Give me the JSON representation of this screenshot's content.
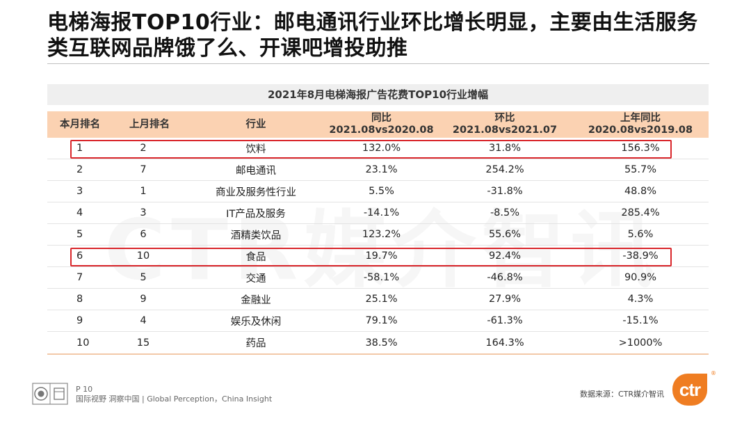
{
  "title": "电梯海报TOP10行业：邮电通讯行业环比增长明显，主要由生活服务类互联网品牌饿了么、开课吧增投助推",
  "table": {
    "caption": "2021年8月电梯海报广告花费TOP10行业增幅",
    "headers": {
      "rank_this": "本月排名",
      "rank_last": "上月排名",
      "industry": "行业",
      "yoy_label": "同比",
      "yoy_period": "2021.08vs2020.08",
      "mom_label": "环比",
      "mom_period": "2021.08vs2021.07",
      "prev_yoy_label": "上年同比",
      "prev_yoy_period": "2020.08vs2019.08"
    },
    "rows": [
      {
        "rank": "1",
        "last": "2",
        "industry": "饮料",
        "yoy": "132.0%",
        "mom": "31.8%",
        "prev": "156.3%"
      },
      {
        "rank": "2",
        "last": "7",
        "industry": "邮电通讯",
        "yoy": "23.1%",
        "mom": "254.2%",
        "prev": "55.7%"
      },
      {
        "rank": "3",
        "last": "1",
        "industry": "商业及服务性行业",
        "yoy": "5.5%",
        "mom": "-31.8%",
        "prev": "48.8%"
      },
      {
        "rank": "4",
        "last": "3",
        "industry": "IT产品及服务",
        "yoy": "-14.1%",
        "mom": "-8.5%",
        "prev": "285.4%"
      },
      {
        "rank": "5",
        "last": "6",
        "industry": "酒精类饮品",
        "yoy": "123.2%",
        "mom": "55.6%",
        "prev": "5.6%"
      },
      {
        "rank": "6",
        "last": "10",
        "industry": "食品",
        "yoy": "19.7%",
        "mom": "92.4%",
        "prev": "-38.9%"
      },
      {
        "rank": "7",
        "last": "5",
        "industry": "交通",
        "yoy": "-58.1%",
        "mom": "-46.8%",
        "prev": "90.9%"
      },
      {
        "rank": "8",
        "last": "9",
        "industry": "金融业",
        "yoy": "25.1%",
        "mom": "27.9%",
        "prev": "4.3%"
      },
      {
        "rank": "9",
        "last": "4",
        "industry": "娱乐及休闲",
        "yoy": "79.1%",
        "mom": "-61.3%",
        "prev": "-15.1%"
      },
      {
        "rank": "10",
        "last": "15",
        "industry": "药品",
        "yoy": "38.5%",
        "mom": "164.3%",
        "prev": ">1000%"
      }
    ]
  },
  "watermark": "CTR媒介智讯",
  "footer": {
    "page": "P 10",
    "slogan": "国际视野  洞察中国 | Global Perception，China Insight",
    "source": "数据来源：CTR媒介智讯",
    "brand": "ctr",
    "registered": "®"
  },
  "colors": {
    "header_bg": "#fbd2b2",
    "caption_bg": "#efefef",
    "highlight": "#d9262b",
    "brand": "#ef7d22"
  }
}
